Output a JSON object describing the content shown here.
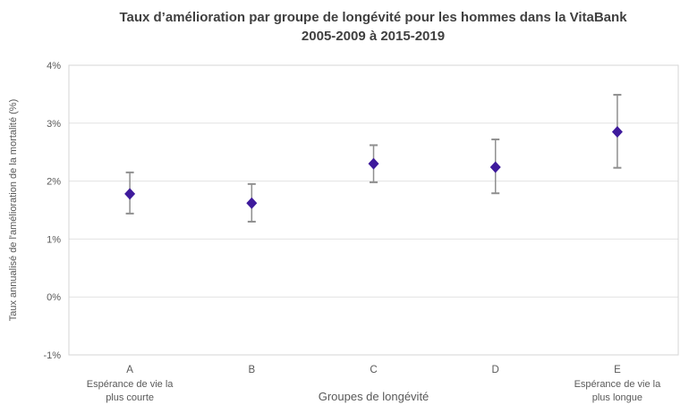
{
  "title": {
    "line1": "Taux d’amélioration par groupe de longévité pour les hommes dans la VitaBank",
    "line2": "2005-2009 à 2015-2019"
  },
  "colors": {
    "marker": "#3e1a9c",
    "error_bar": "#8f8f8f",
    "gridline": "#e2e2e2",
    "plot_border": "#d5d5d5",
    "axis_text": "#595959",
    "title_text": "#404040"
  },
  "chart_data": {
    "type": "scatter",
    "title": "Taux d’amélioration par groupe de longévité pour les hommes dans la VitaBank 2005-2009 à 2015-2019",
    "xlabel": "Groupes de longévité",
    "ylabel": "Taux annualisé de l'amélioration de la mortalité (%)",
    "categories": [
      "A",
      "B",
      "C",
      "D",
      "E"
    ],
    "values": [
      1.78,
      1.62,
      2.3,
      2.24,
      2.85
    ],
    "error_high": [
      2.15,
      1.95,
      2.62,
      2.72,
      3.49
    ],
    "error_low": [
      1.44,
      1.3,
      1.98,
      1.79,
      2.23
    ],
    "ylim": [
      -1,
      4
    ],
    "yticks": [
      {
        "value": 4,
        "label": "4%"
      },
      {
        "value": 3,
        "label": "3%"
      },
      {
        "value": 2,
        "label": "2%"
      },
      {
        "value": 1,
        "label": "1%"
      },
      {
        "value": 0,
        "label": "0%"
      },
      {
        "value": -1,
        "label": "-1%"
      }
    ],
    "sublabels": [
      {
        "category": "A",
        "lines": [
          "Espérance de vie la",
          "plus courte"
        ]
      },
      {
        "category": "E",
        "lines": [
          "Espérance de vie la",
          "plus longue"
        ]
      }
    ],
    "grid": true,
    "legend": false,
    "marker": "diamond"
  }
}
